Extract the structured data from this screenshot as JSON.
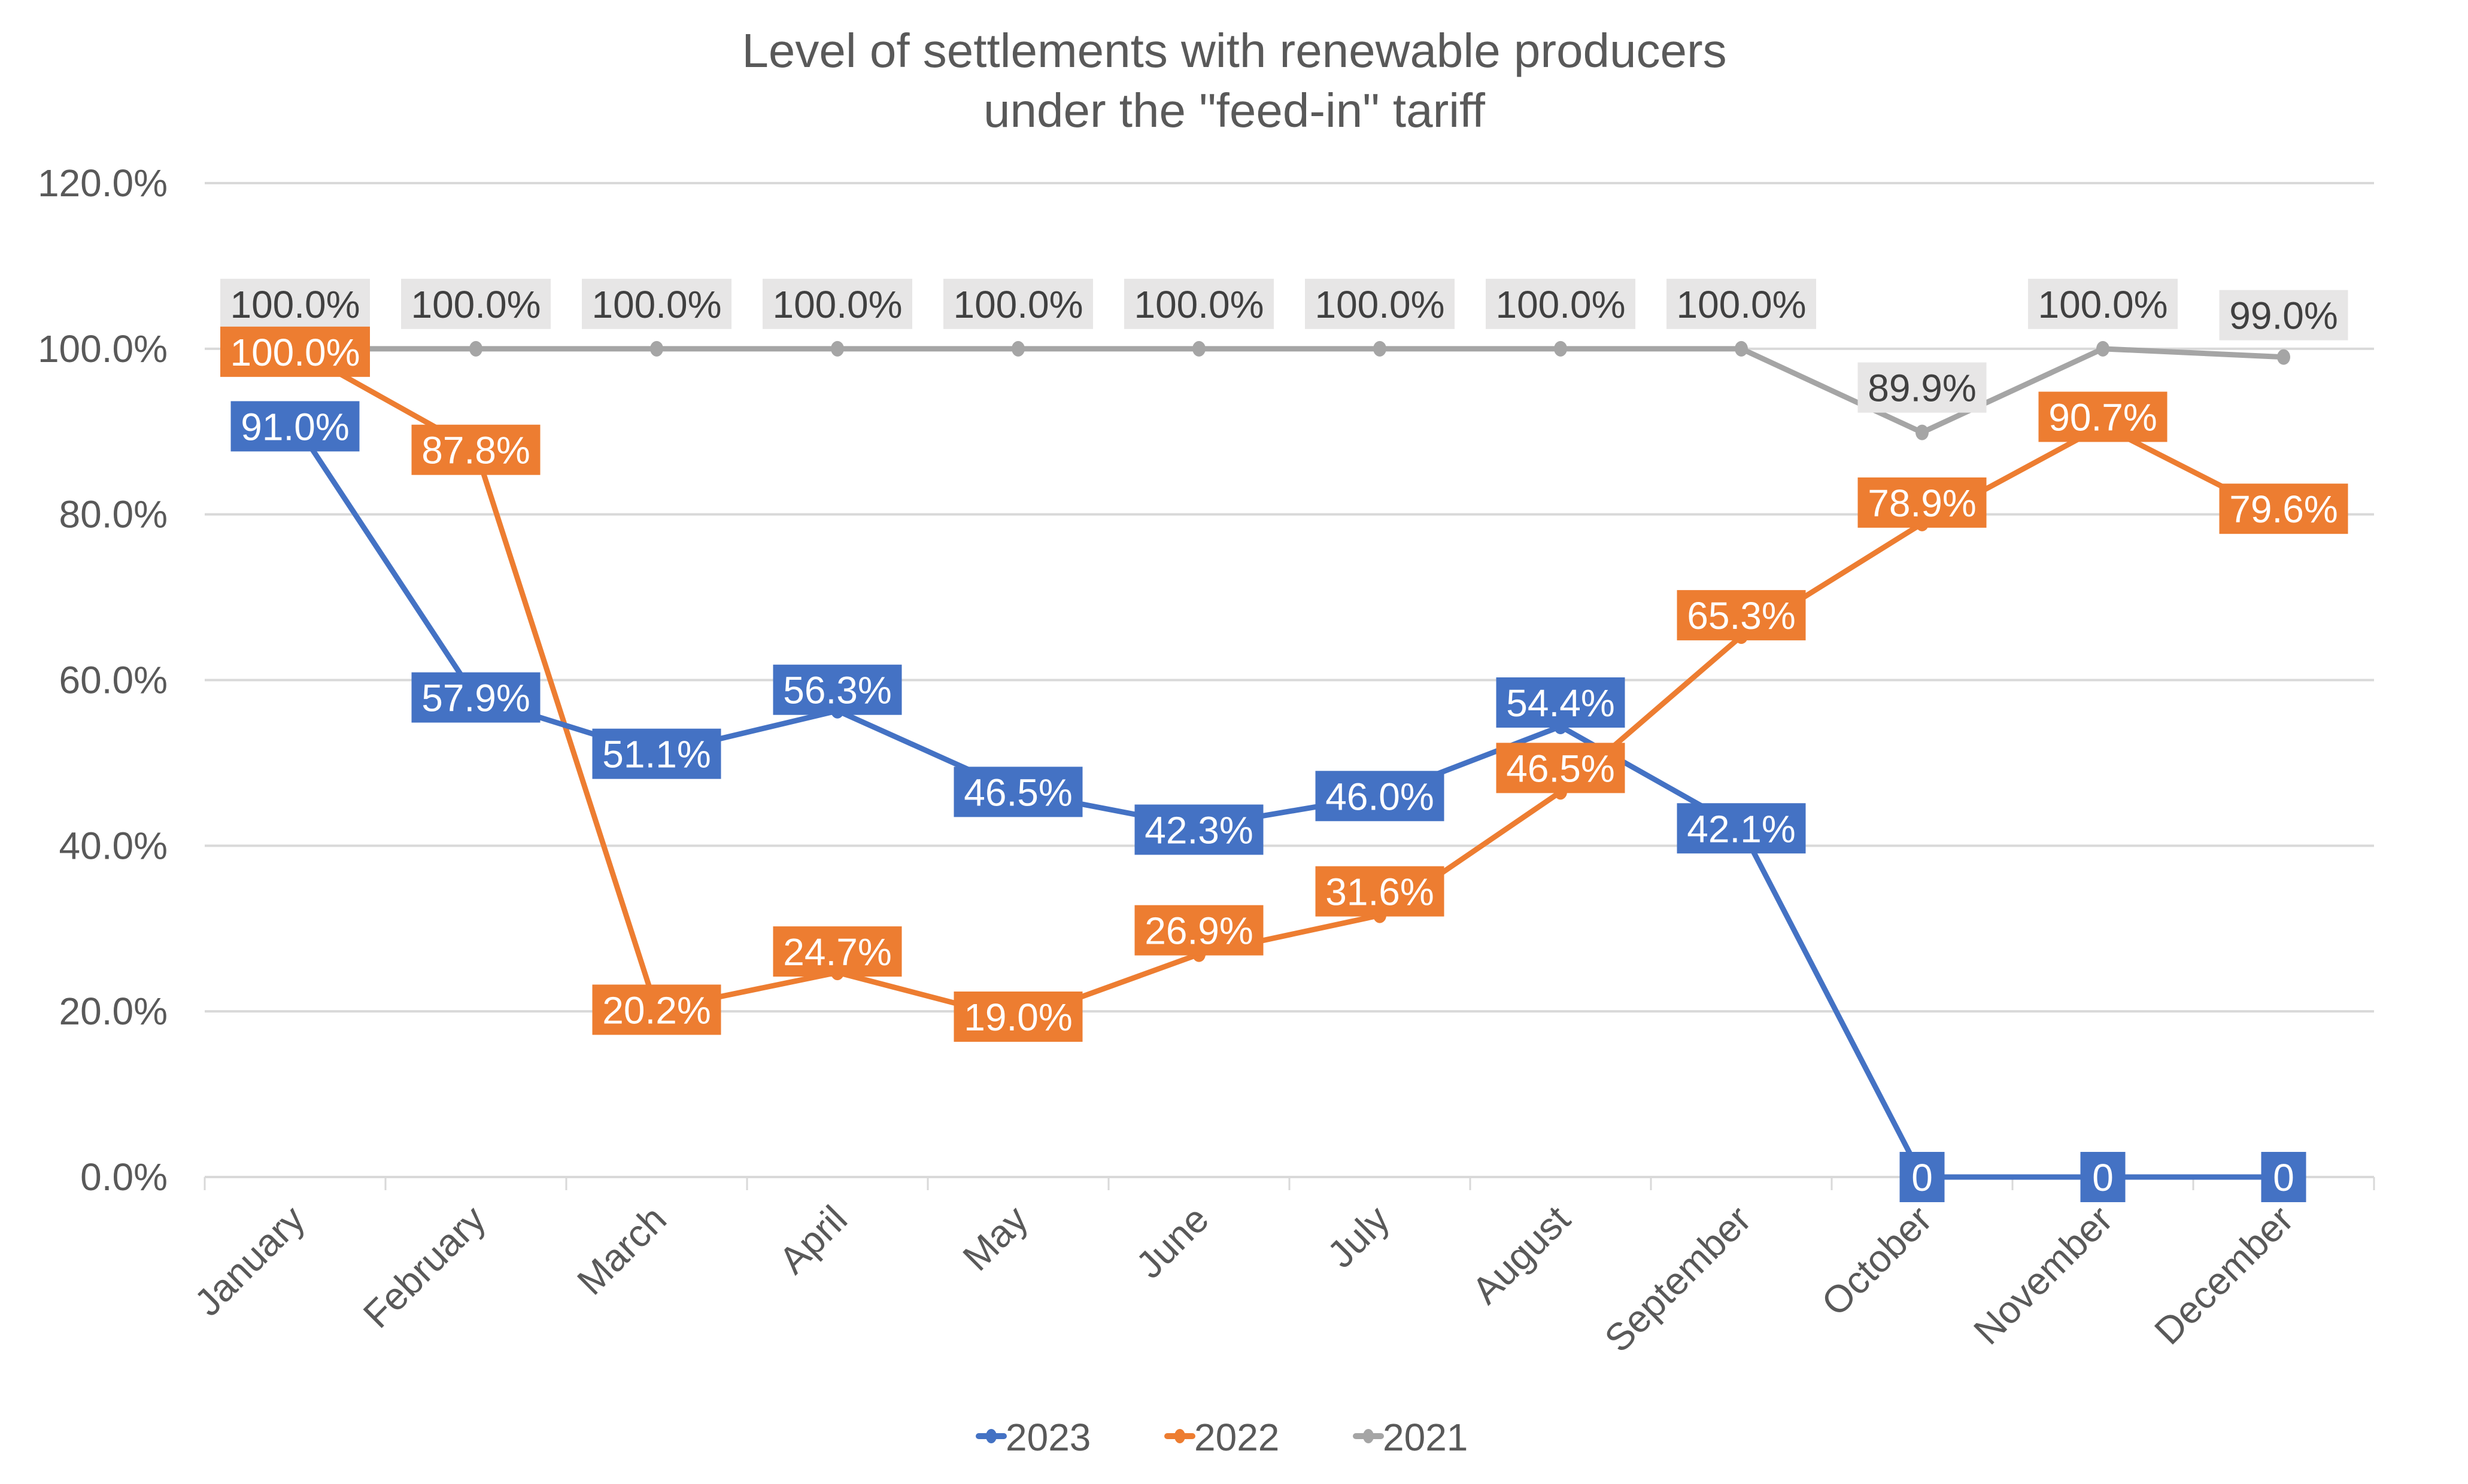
{
  "chart_data": {
    "type": "line",
    "title": "Level of settlements with renewable producers\nunder the \"feed-in\" tariff",
    "title_lines": [
      "Level of settlements with renewable producers",
      "under the \"feed-in\" tariff"
    ],
    "xlabel": "",
    "ylabel": "",
    "categories": [
      "January",
      "February",
      "March",
      "April",
      "May",
      "June",
      "July",
      "August",
      "September",
      "October",
      "November",
      "December"
    ],
    "ylim": [
      0,
      120
    ],
    "yticks": [
      0,
      20,
      40,
      60,
      80,
      100,
      120
    ],
    "ytick_labels": [
      "0.0%",
      "20.0%",
      "40.0%",
      "60.0%",
      "80.0%",
      "100.0%",
      "120.0%"
    ],
    "grid": true,
    "legend": {
      "position": "bottom",
      "entries": [
        "2023",
        "2022",
        "2021"
      ]
    },
    "series": [
      {
        "name": "2023",
        "color": "#4472C4",
        "values": [
          91.0,
          57.9,
          51.1,
          56.3,
          46.5,
          42.3,
          46.0,
          54.4,
          42.1,
          0,
          0,
          0
        ],
        "labels": [
          "91.0%",
          "57.9%",
          "51.1%",
          "56.3%",
          "46.5%",
          "42.3%",
          "46.0%",
          "54.4%",
          "42.1%",
          "0",
          "0",
          "0"
        ],
        "label_bg": "#4472C4",
        "label_color": "#FFFFFF"
      },
      {
        "name": "2022",
        "color": "#ED7D31",
        "values": [
          100.0,
          87.8,
          20.2,
          24.7,
          19.0,
          26.9,
          31.6,
          46.5,
          65.3,
          78.9,
          90.7,
          79.6
        ],
        "labels": [
          "100.0%",
          "87.8%",
          "20.2%",
          "24.7%",
          "19.0%",
          "26.9%",
          "31.6%",
          "46.5%",
          "65.3%",
          "78.9%",
          "90.7%",
          "79.6%"
        ],
        "label_bg": "#ED7D31",
        "label_color": "#FFFFFF"
      },
      {
        "name": "2021",
        "color": "#A5A5A5",
        "values": [
          100.0,
          100.0,
          100.0,
          100.0,
          100.0,
          100.0,
          100.0,
          100.0,
          100.0,
          89.9,
          100.0,
          99.0
        ],
        "labels": [
          "100.0%",
          "100.0%",
          "100.0%",
          "100.0%",
          "100.0%",
          "100.0%",
          "100.0%",
          "100.0%",
          "100.0%",
          "89.9%",
          "100.0%",
          "99.0%"
        ],
        "label_bg": "#E7E6E6",
        "label_color": "#404040"
      }
    ]
  }
}
